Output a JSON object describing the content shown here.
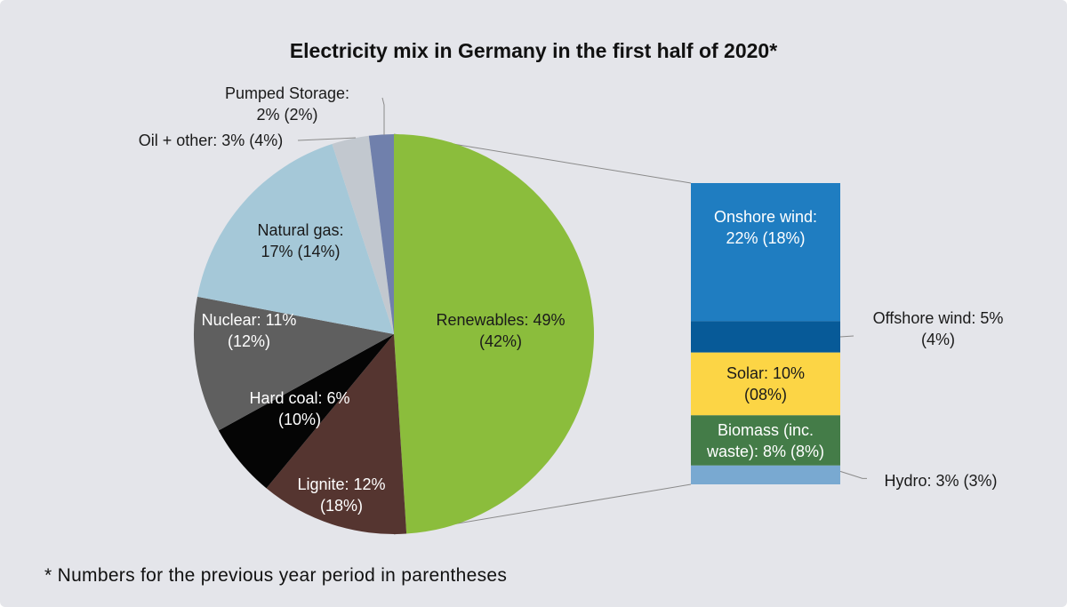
{
  "chart_data": [
    {
      "type": "pie",
      "title": "Electricity mix in Germany in the first half of 2020*",
      "slices": [
        {
          "name": "Renewables",
          "value": 49,
          "previous": 42,
          "label": "Renewables: 49%",
          "label2": "(42%)",
          "color": "#8bbd3c",
          "text_color": "#1a1a1a"
        },
        {
          "name": "Lignite",
          "value": 12,
          "previous": 18,
          "label": "Lignite: 12%",
          "label2": "(18%)",
          "color": "#553530",
          "text_color": "#ffffff"
        },
        {
          "name": "Hard coal",
          "value": 6,
          "previous": 10,
          "label": "Hard coal: 6%",
          "label2": "(10%)",
          "color": "#050505",
          "text_color": "#ffffff"
        },
        {
          "name": "Nuclear",
          "value": 11,
          "previous": 12,
          "label": "Nuclear: 11%",
          "label2": "(12%)",
          "color": "#5f5f5f",
          "text_color": "#ffffff"
        },
        {
          "name": "Natural gas",
          "value": 17,
          "previous": 14,
          "label": "Natural gas:",
          "label2": "17% (14%)",
          "color": "#a5c8d8",
          "text_color": "#1a1a1a"
        },
        {
          "name": "Oil + other",
          "value": 3,
          "previous": 4,
          "label": "Oil + other: 3% (4%)",
          "label2": "",
          "color": "#c2c8cf",
          "text_color": "#1a1a1a"
        },
        {
          "name": "Pumped Storage",
          "value": 2,
          "previous": 2,
          "label": "Pumped Storage:",
          "label2": "2% (2%)",
          "color": "#7080ac",
          "text_color": "#1a1a1a"
        }
      ]
    },
    {
      "type": "bar",
      "stacked": true,
      "breakdown_of": "Renewables",
      "segments": [
        {
          "name": "Onshore wind",
          "value": 22,
          "previous": 18,
          "label": "Onshore wind:",
          "label2": "22% (18%)",
          "color": "#1f7dc1",
          "text_color": "#ffffff"
        },
        {
          "name": "Offshore wind",
          "value": 5,
          "previous": 4,
          "label": "Offshore wind: 5%",
          "label2": "(4%)",
          "color": "#075a98",
          "text_color": "#1a1a1a"
        },
        {
          "name": "Solar",
          "value": 10,
          "previous": 8,
          "label": "Solar: 10%",
          "label2": "(08%)",
          "color": "#fcd545",
          "text_color": "#1a1a1a"
        },
        {
          "name": "Biomass",
          "value": 8,
          "previous": 8,
          "label": "Biomass (inc.",
          "label2": "waste): 8% (8%)",
          "color": "#447c48",
          "text_color": "#ffffff"
        },
        {
          "name": "Hydro",
          "value": 3,
          "previous": 3,
          "label": "Hydro: 3% (3%)",
          "label2": "",
          "color": "#79a9d1",
          "text_color": "#1a1a1a"
        }
      ]
    }
  ],
  "footnote": "* Numbers for the previous year period in parentheses"
}
